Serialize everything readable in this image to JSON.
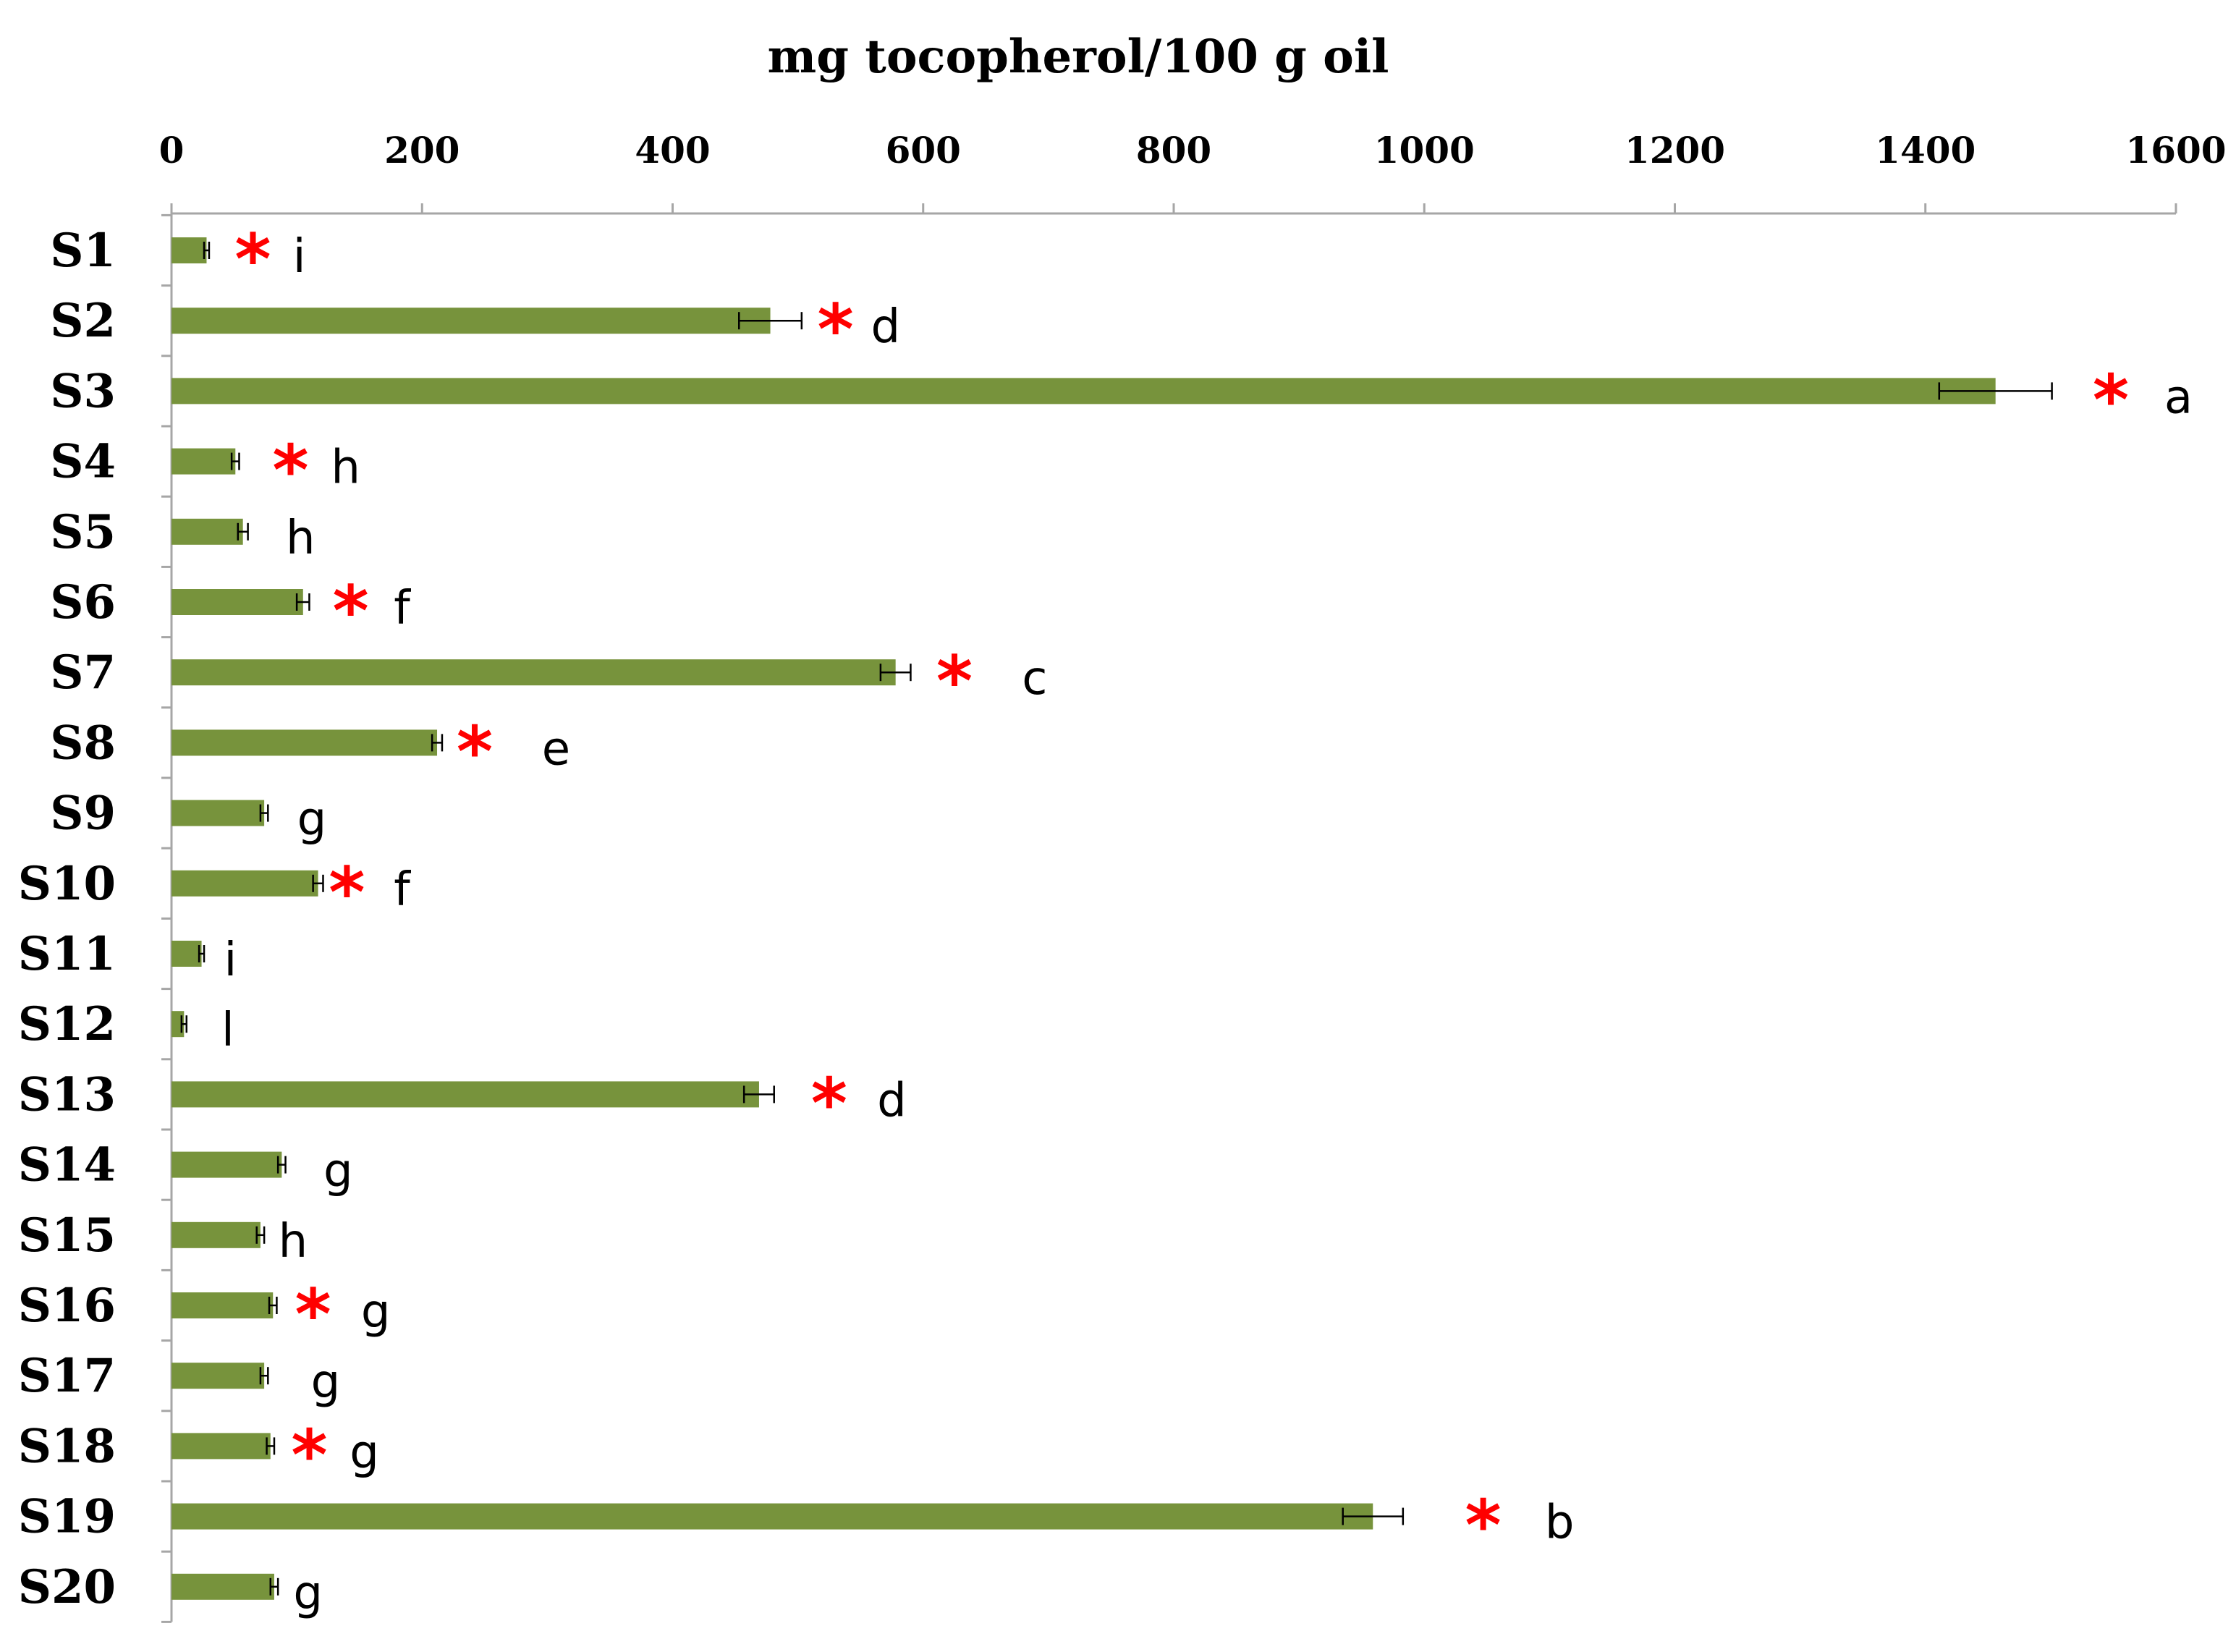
{
  "chart_data": {
    "type": "bar",
    "orientation": "horizontal",
    "title": "mg tocopherol/100 g oil",
    "xlabel": "mg tocopherol/100 g oil",
    "ylabel": "",
    "xlim": [
      0,
      1600
    ],
    "x_ticks": [
      "0",
      "200",
      "400",
      "600",
      "800",
      "1000",
      "1200",
      "1400",
      "1600"
    ],
    "x_tick_values": [
      0,
      200,
      400,
      600,
      800,
      1000,
      1200,
      1400,
      1600
    ],
    "categories": [
      "S1",
      "S2",
      "S3",
      "S4",
      "S5",
      "S6",
      "S7",
      "S8",
      "S9",
      "S10",
      "S11",
      "S12",
      "S13",
      "S14",
      "S15",
      "S16",
      "S17",
      "S18",
      "S19",
      "S20"
    ],
    "values": [
      28,
      478,
      1456,
      51,
      57,
      105,
      578,
      212,
      74,
      117,
      24,
      10,
      469,
      88,
      71,
      81,
      74,
      79,
      959,
      82
    ],
    "errors": [
      2,
      25,
      45,
      3,
      4,
      5,
      12,
      4,
      3,
      4,
      2,
      2,
      12,
      3,
      3,
      3,
      3,
      3,
      24,
      3
    ],
    "significance_star": [
      true,
      true,
      true,
      true,
      false,
      true,
      true,
      true,
      false,
      true,
      false,
      false,
      true,
      false,
      false,
      true,
      false,
      true,
      true,
      false
    ],
    "star_value_position": [
      65,
      530,
      1548,
      95,
      null,
      143,
      625,
      242,
      null,
      140,
      null,
      null,
      525,
      null,
      null,
      113,
      null,
      110,
      1047,
      null
    ],
    "letters": [
      "i",
      "d",
      "a",
      "h",
      "h",
      "f",
      "c",
      "e",
      "g",
      "f",
      "i",
      "l",
      "d",
      "g",
      "h",
      "g",
      "g",
      "g",
      "b",
      "g"
    ],
    "letter_value_position": [
      102,
      570,
      1602,
      139,
      103,
      184,
      689,
      307,
      112,
      184,
      47,
      45,
      575,
      133,
      97,
      163,
      123,
      154,
      1108,
      109
    ],
    "bar_color": "#77933C",
    "star_color": "#FF0000",
    "axis_color": "#A6A6A6",
    "text_color": "#000000",
    "grid": false,
    "legend": "none"
  }
}
